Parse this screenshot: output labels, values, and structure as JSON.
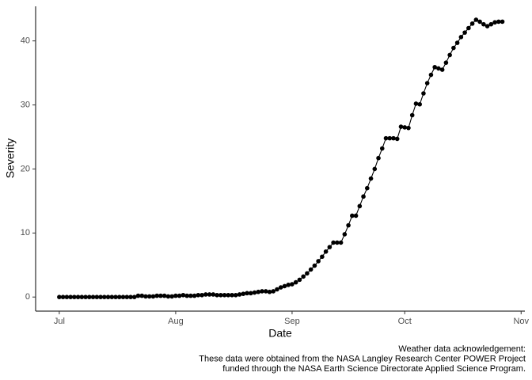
{
  "chart_data": {
    "type": "line",
    "x_label": "Date",
    "y_label": "Severity",
    "caption": [
      "Weather data acknowledgement:",
      "These data were obtained from the NASA Langley Research Center POWER Project",
      "funded through the NASA Earth Science Directorate Applied Science Program."
    ],
    "x": [
      0,
      1,
      2,
      3,
      4,
      5,
      6,
      7,
      8,
      9,
      10,
      11,
      12,
      13,
      14,
      15,
      16,
      17,
      18,
      19,
      20,
      21,
      22,
      23,
      24,
      25,
      26,
      27,
      28,
      29,
      30,
      31,
      32,
      33,
      34,
      35,
      36,
      37,
      38,
      39,
      40,
      41,
      42,
      43,
      44,
      45,
      46,
      47,
      48,
      49,
      50,
      51,
      52,
      53,
      54,
      55,
      56,
      57,
      58,
      59,
      60,
      61,
      62,
      63,
      64,
      65,
      66,
      67,
      68,
      69,
      70,
      71,
      72,
      73,
      74,
      75,
      76,
      77,
      78,
      79,
      80,
      81,
      82,
      83,
      84,
      85,
      86,
      87,
      88,
      89,
      90,
      91,
      92,
      93,
      94,
      95,
      96,
      97,
      98,
      99,
      100,
      101,
      102,
      103,
      104,
      105,
      106,
      107,
      108,
      109,
      110,
      111,
      112,
      113,
      114,
      115,
      116,
      117,
      118
    ],
    "values": [
      0,
      0,
      0,
      0,
      0,
      0,
      0,
      0,
      0,
      0,
      0,
      0,
      0,
      0,
      0,
      0,
      0,
      0,
      0,
      0,
      0,
      0.2,
      0.2,
      0.1,
      0.1,
      0.1,
      0.2,
      0.2,
      0.2,
      0.1,
      0.1,
      0.2,
      0.2,
      0.3,
      0.2,
      0.2,
      0.2,
      0.3,
      0.3,
      0.4,
      0.4,
      0.4,
      0.3,
      0.3,
      0.3,
      0.3,
      0.3,
      0.3,
      0.4,
      0.5,
      0.6,
      0.6,
      0.7,
      0.8,
      0.9,
      0.9,
      0.8,
      0.9,
      1.2,
      1.5,
      1.7,
      1.9,
      2.0,
      2.3,
      2.7,
      3.2,
      3.7,
      4.3,
      4.9,
      5.6,
      6.3,
      7.1,
      7.8,
      8.5,
      8.5,
      8.5,
      9.8,
      11.2,
      12.7,
      12.7,
      14.2,
      15.7,
      17.0,
      18.5,
      20.0,
      21.7,
      23.2,
      24.8,
      24.8,
      24.8,
      24.7,
      26.6,
      26.5,
      26.4,
      28.4,
      30.2,
      30.1,
      31.8,
      33.4,
      34.7,
      35.9,
      35.7,
      35.5,
      36.6,
      37.8,
      38.9,
      39.7,
      40.6,
      41.3,
      42.0,
      42.7,
      43.3,
      43.0,
      42.6,
      42.3,
      42.6,
      42.9,
      43.0,
      43.0
    ],
    "color": "#000000",
    "xlim": [
      -6.3,
      124
    ],
    "ylim": [
      -2.2,
      45.4
    ],
    "xticks": [
      {
        "value": 0,
        "label": "Jul"
      },
      {
        "value": 31,
        "label": "Aug"
      },
      {
        "value": 62,
        "label": "Sep"
      },
      {
        "value": 92,
        "label": "Oct"
      },
      {
        "value": 123,
        "label": "Nov"
      }
    ],
    "yticks": [
      0,
      10,
      20,
      30,
      40
    ],
    "grid": false
  }
}
